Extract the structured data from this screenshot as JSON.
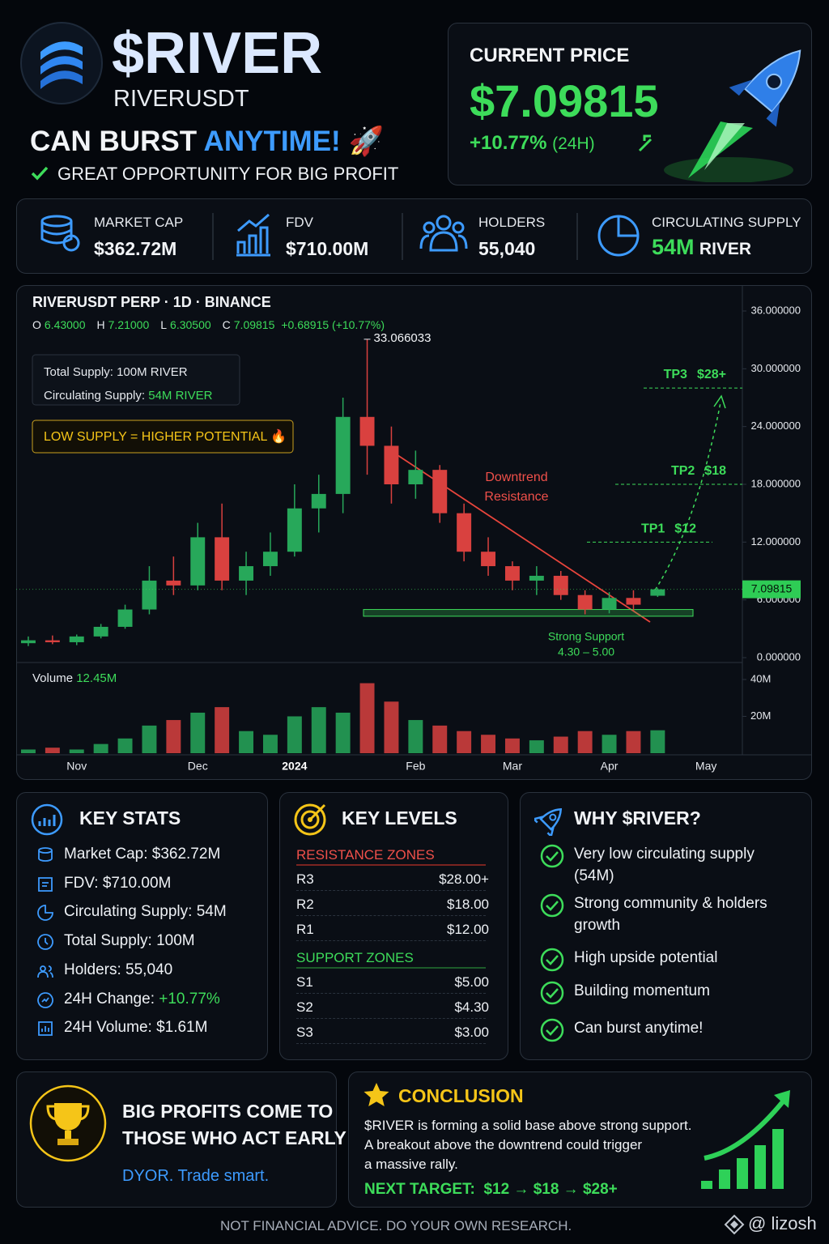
{
  "header": {
    "symbol": "$RIVER",
    "pair": "RIVERUSDT",
    "tagline_a": "CAN BURST",
    "tagline_b": "ANYTIME!",
    "tagline_icon": "🚀",
    "subtagline": "GREAT OPPORTUNITY FOR BIG PROFIT"
  },
  "price_card": {
    "label": "CURRENT PRICE",
    "price": "$7.09815",
    "change": "+10.77%",
    "period": "(24H)"
  },
  "stats": [
    {
      "label": "MARKET CAP",
      "value": "$362.72M"
    },
    {
      "label": "FDV",
      "value": "$710.00M"
    },
    {
      "label": "HOLDERS",
      "value": "55,040"
    },
    {
      "label": "CIRCULATING SUPPLY",
      "value": "54M",
      "unit": "RIVER"
    }
  ],
  "chart_data": {
    "type": "candlestick",
    "title": "RIVERUSDT PERP · 1D · BINANCE",
    "ohlc_legend": [
      {
        "key": "O",
        "value": "6.43000"
      },
      {
        "key": "H",
        "value": "7.21000"
      },
      {
        "key": "L",
        "value": "6.30500"
      },
      {
        "key": "C",
        "value": "7.09815"
      }
    ],
    "change": "+0.68915 (+10.77%)",
    "info_box": [
      {
        "label": "Total Supply:",
        "value": "100M RIVER"
      },
      {
        "label": "Circulating Supply:",
        "value": "54M RIVER"
      }
    ],
    "badge": "LOW SUPPLY = HIGHER POTENTIAL 🔥",
    "trend_label": [
      "Downtrend",
      "Resistance"
    ],
    "categories": [
      null,
      null,
      "Nov",
      null,
      null,
      null,
      null,
      "Dec",
      null,
      null,
      null,
      "2024",
      null,
      null,
      null,
      null,
      "Feb",
      null,
      null,
      null,
      "Mar",
      null,
      null,
      null,
      "Apr",
      null,
      null,
      null,
      "May",
      null
    ],
    "open": [
      1.5,
      1.8,
      1.6,
      2.2,
      3.2,
      5.0,
      8.0,
      7.5,
      12.5,
      8.0,
      9.5,
      11.0,
      15.5,
      17.0,
      25.0,
      22.0,
      18.0,
      19.5,
      15.0,
      11.0,
      9.5,
      8.0,
      8.5,
      6.5,
      5.0,
      6.2,
      6.43,
      null,
      null,
      null
    ],
    "high": [
      2.2,
      2.3,
      2.4,
      3.5,
      5.5,
      9.5,
      10.5,
      14.0,
      16.0,
      11.0,
      13.0,
      18.0,
      19.0,
      27.0,
      33.066033,
      24.0,
      21.5,
      20.0,
      16.0,
      12.5,
      10.0,
      9.5,
      9.0,
      7.0,
      6.8,
      7.0,
      7.21,
      null,
      null,
      null
    ],
    "low": [
      1.2,
      1.4,
      1.3,
      2.0,
      3.0,
      4.5,
      6.5,
      7.0,
      7.0,
      6.5,
      8.5,
      10.5,
      13.0,
      15.0,
      19.0,
      16.0,
      16.5,
      14.0,
      10.0,
      8.5,
      7.0,
      6.5,
      6.0,
      4.5,
      4.6,
      4.8,
      6.305,
      null,
      null,
      null
    ],
    "close": [
      1.8,
      1.6,
      2.2,
      3.2,
      5.0,
      8.0,
      7.5,
      12.5,
      8.0,
      9.5,
      11.0,
      15.5,
      17.0,
      25.0,
      22.0,
      18.0,
      19.5,
      15.0,
      11.0,
      9.5,
      8.0,
      8.5,
      6.5,
      5.0,
      6.2,
      5.5,
      7.09815,
      null,
      null,
      null
    ],
    "volume": [
      2000000,
      3000000,
      2000000,
      5000000,
      8000000,
      15000000,
      18000000,
      22000000,
      25000000,
      12000000,
      10000000,
      20000000,
      25000000,
      22000000,
      38000000,
      28000000,
      18000000,
      15000000,
      12000000,
      10000000,
      8000000,
      7000000,
      9000000,
      12000000,
      10000000,
      12000000,
      12450000,
      null,
      null,
      null
    ],
    "volume_title": "Volume",
    "volume_current_label": "12.45M",
    "ylim": [
      0,
      36
    ],
    "yticks": [
      {
        "value": 0,
        "label": "0.000000"
      },
      {
        "value": 6,
        "label": "6.000000"
      },
      {
        "value": 12,
        "label": "12.000000"
      },
      {
        "value": 18,
        "label": "18.000000"
      },
      {
        "value": 24,
        "label": "24.000000"
      },
      {
        "value": 30,
        "label": "30.000000"
      },
      {
        "value": 36,
        "label": "36.000000"
      }
    ],
    "vlim": [
      0,
      40000000
    ],
    "vticks": [
      {
        "value": 20000000,
        "label": "20M"
      },
      {
        "value": 40000000,
        "label": "40M"
      }
    ],
    "targets": [
      {
        "name": "TP1",
        "value": 12,
        "label": "$12"
      },
      {
        "name": "TP2",
        "value": 18,
        "label": "$18"
      },
      {
        "name": "TP3",
        "value": 28,
        "label": "$28+"
      }
    ],
    "support": {
      "name": "Strong Support",
      "low": 4.3,
      "high": 5.0,
      "label": "4.30 – 5.00"
    },
    "up_color": "#27a85a",
    "down_color": "#d9413f",
    "grid": false
  },
  "key_stats": {
    "title": "KEY STATS",
    "items": [
      {
        "label": "Market Cap:",
        "value": "$362.72M"
      },
      {
        "label": "FDV:",
        "value": "$710.00M"
      },
      {
        "label": "Circulating Supply:",
        "value": "54M"
      },
      {
        "label": "Total Supply:",
        "value": "100M"
      },
      {
        "label": "Holders:",
        "value": "55,040"
      },
      {
        "label": "24H Change:",
        "value": "+10.77%"
      },
      {
        "label": "24H Volume:",
        "value": "$1.61M"
      }
    ]
  },
  "key_levels": {
    "title": "KEY LEVELS",
    "resistance_title": "RESISTANCE ZONES",
    "resistance": [
      {
        "name": "R3",
        "price": "$28.00+"
      },
      {
        "name": "R2",
        "price": "$18.00"
      },
      {
        "name": "R1",
        "price": "$12.00"
      }
    ],
    "support_title": "SUPPORT ZONES",
    "support": [
      {
        "name": "S1",
        "price": "$5.00"
      },
      {
        "name": "S2",
        "price": "$4.30"
      },
      {
        "name": "S3",
        "price": "$3.00"
      }
    ]
  },
  "why": {
    "title": "WHY $RIVER?",
    "items": [
      [
        "Very low circulating supply",
        "(54M)"
      ],
      [
        "Strong community & holders",
        "growth"
      ],
      [
        "High upside potential"
      ],
      [
        "Building momentum"
      ],
      [
        "Can burst anytime!"
      ]
    ]
  },
  "cta": {
    "line1": "BIG PROFITS COME TO",
    "line2": "THOSE WHO ACT EARLY!",
    "sub": "DYOR. Trade smart."
  },
  "conclusion": {
    "title": "CONCLUSION",
    "lines": [
      "$RIVER is forming a solid base above strong support.",
      "A breakout above the downtrend could trigger",
      "a massive rally."
    ],
    "next_label": "NEXT TARGET:",
    "next_value": "$12 → $18 → $28+"
  },
  "footer": {
    "disclaimer": "NOT FINANCIAL ADVICE. DO YOUR OWN RESEARCH.",
    "handle": "@ lizosh"
  }
}
